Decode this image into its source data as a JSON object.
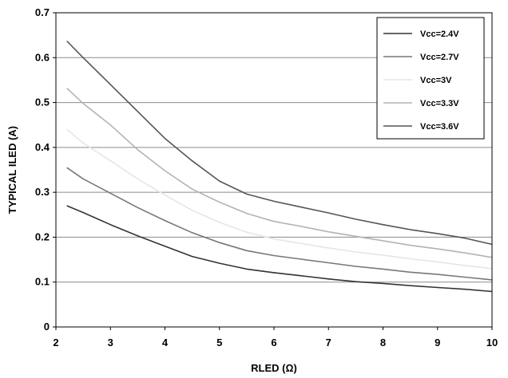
{
  "chart_data": {
    "type": "line",
    "xlabel": "RLED (Ω)",
    "ylabel": "TYPICAL ILED (A)",
    "xlim": [
      2,
      10
    ],
    "ylim": [
      0,
      0.7
    ],
    "xticks": [
      "2",
      "3",
      "4",
      "5",
      "6",
      "7",
      "8",
      "9",
      "10"
    ],
    "yticks": [
      "0",
      "0.1",
      "0.2",
      "0.3",
      "0.4",
      "0.5",
      "0.6",
      "0.7"
    ],
    "grid": "horizontal",
    "legend_position": "top-right",
    "x": [
      2.2,
      2.5,
      3.0,
      3.5,
      4.0,
      4.5,
      5.0,
      5.5,
      6.0,
      6.5,
      7.0,
      7.5,
      8.0,
      8.5,
      9.0,
      9.5,
      10.0
    ],
    "series": [
      {
        "name": "Vcc=2.4V",
        "color": "#333333",
        "values": [
          0.27,
          0.255,
          0.228,
          0.203,
          0.18,
          0.157,
          0.142,
          0.129,
          0.121,
          0.114,
          0.107,
          0.101,
          0.097,
          0.092,
          0.088,
          0.084,
          0.079
        ]
      },
      {
        "name": "Vcc=2.7V",
        "color": "#777777",
        "values": [
          0.355,
          0.33,
          0.298,
          0.266,
          0.237,
          0.21,
          0.188,
          0.17,
          0.159,
          0.151,
          0.143,
          0.135,
          0.129,
          0.122,
          0.117,
          0.111,
          0.105
        ]
      },
      {
        "name": "Vcc=3V",
        "color": "#e6e6e6",
        "values": [
          0.44,
          0.41,
          0.37,
          0.33,
          0.294,
          0.26,
          0.233,
          0.211,
          0.196,
          0.186,
          0.176,
          0.167,
          0.16,
          0.152,
          0.145,
          0.137,
          0.13
        ]
      },
      {
        "name": "Vcc=3.3V",
        "color": "#b3b3b3",
        "values": [
          0.532,
          0.498,
          0.45,
          0.395,
          0.348,
          0.307,
          0.278,
          0.253,
          0.235,
          0.224,
          0.212,
          0.202,
          0.192,
          0.182,
          0.174,
          0.165,
          0.155
        ]
      },
      {
        "name": "Vcc=3.6V",
        "color": "#555555",
        "values": [
          0.637,
          0.6,
          0.54,
          0.48,
          0.42,
          0.37,
          0.325,
          0.296,
          0.28,
          0.267,
          0.254,
          0.24,
          0.228,
          0.217,
          0.208,
          0.198,
          0.184
        ]
      }
    ]
  }
}
